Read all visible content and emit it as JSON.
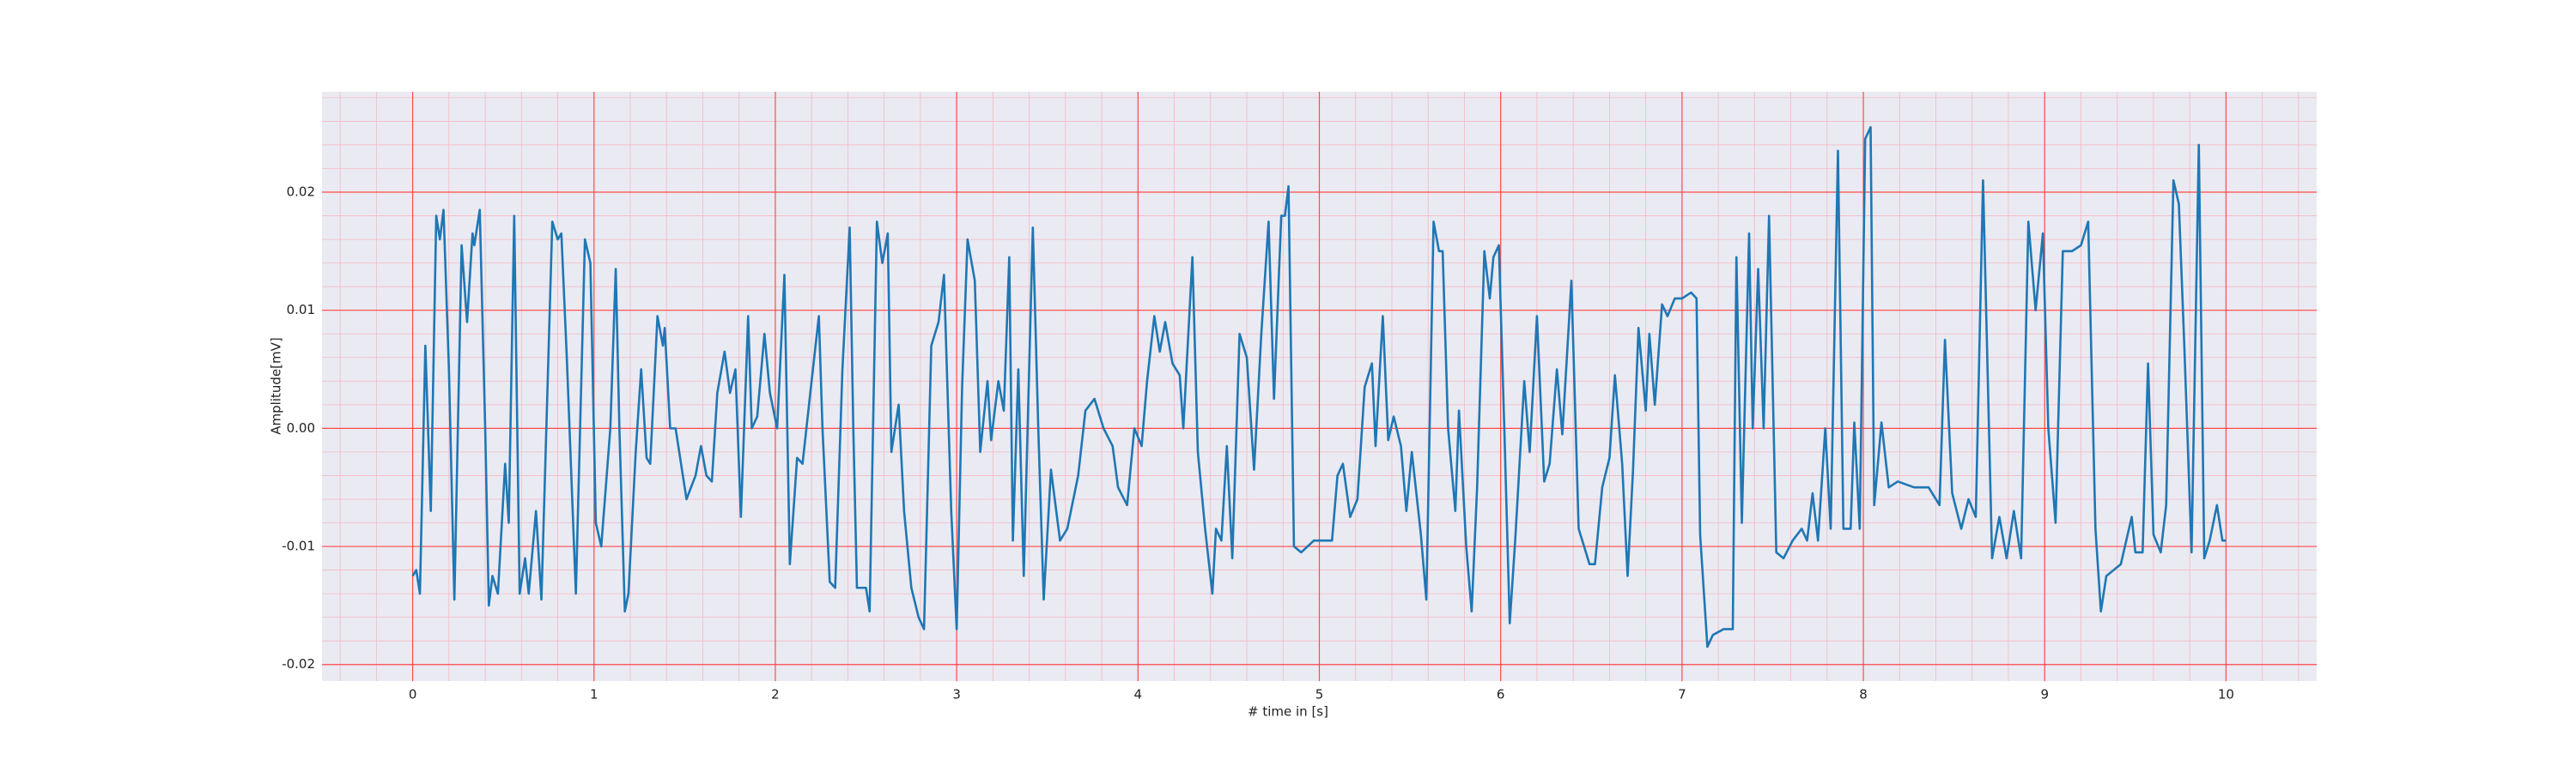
{
  "chart_data": {
    "type": "line",
    "xlabel": "# time in [s]",
    "ylabel": "Amplitude[mV]",
    "xlim": [
      -0.5,
      10.5
    ],
    "ylim": [
      -0.0214,
      0.0285
    ],
    "xticks": [
      0,
      1,
      2,
      3,
      4,
      5,
      6,
      7,
      8,
      9,
      10
    ],
    "yticks": [
      -0.02,
      -0.01,
      {
        "value": 0,
        "label": "0.00"
      },
      0.01,
      0.02
    ],
    "grid": true,
    "minor_grid": true,
    "grid_color": "#ff4a4a",
    "minor_grid_color": "#f4b9c4",
    "background": "#eaeaf2",
    "x": [
      0,
      0.02,
      0.04,
      0.07,
      0.1,
      0.13,
      0.15,
      0.17,
      0.2,
      0.23,
      0.27,
      0.3,
      0.33,
      0.34,
      0.37,
      0.4,
      0.42,
      0.44,
      0.47,
      0.51,
      0.53,
      0.56,
      0.59,
      0.62,
      0.64,
      0.68,
      0.71,
      0.77,
      0.8,
      0.82,
      0.85,
      0.9,
      0.95,
      0.98,
      1.01,
      1.04,
      1.09,
      1.12,
      1.14,
      1.17,
      1.19,
      1.23,
      1.26,
      1.29,
      1.31,
      1.35,
      1.38,
      1.39,
      1.42,
      1.45,
      1.48,
      1.51,
      1.56,
      1.59,
      1.62,
      1.65,
      1.68,
      1.72,
      1.75,
      1.78,
      1.81,
      1.85,
      1.87,
      1.9,
      1.94,
      1.97,
      2.01,
      2.05,
      2.08,
      2.12,
      2.15,
      2.2,
      2.24,
      2.26,
      2.3,
      2.33,
      2.37,
      2.41,
      2.43,
      2.45,
      2.5,
      2.52,
      2.56,
      2.59,
      2.62,
      2.64,
      2.68,
      2.71,
      2.75,
      2.79,
      2.82,
      2.86,
      2.9,
      2.93,
      2.97,
      3.0,
      3.03,
      3.06,
      3.1,
      3.13,
      3.17,
      3.19,
      3.23,
      3.26,
      3.29,
      3.31,
      3.34,
      3.37,
      3.42,
      3.45,
      3.48,
      3.52,
      3.57,
      3.61,
      3.67,
      3.71,
      3.76,
      3.81,
      3.86,
      3.89,
      3.94,
      3.98,
      4.02,
      4.05,
      4.09,
      4.12,
      4.15,
      4.19,
      4.23,
      4.25,
      4.3,
      4.33,
      4.37,
      4.41,
      4.43,
      4.46,
      4.49,
      4.52,
      4.56,
      4.6,
      4.64,
      4.68,
      4.72,
      4.75,
      4.79,
      4.81,
      4.83,
      4.86,
      4.9,
      4.97,
      5.07,
      5.1,
      5.13,
      5.17,
      5.21,
      5.25,
      5.29,
      5.31,
      5.35,
      5.38,
      5.41,
      5.45,
      5.48,
      5.51,
      5.56,
      5.59,
      5.63,
      5.66,
      5.68,
      5.71,
      5.75,
      5.77,
      5.81,
      5.84,
      5.87,
      5.91,
      5.94,
      5.96,
      5.99,
      6.02,
      6.05,
      6.08,
      6.13,
      6.16,
      6.2,
      6.24,
      6.27,
      6.31,
      6.34,
      6.39,
      6.43,
      6.46,
      6.49,
      6.52,
      6.56,
      6.6,
      6.63,
      6.67,
      6.7,
      6.73,
      6.76,
      6.8,
      6.82,
      6.85,
      6.89,
      6.92,
      6.96,
      7.0,
      7.05,
      7.08,
      7.1,
      7.14,
      7.17,
      7.23,
      7.28,
      7.3,
      7.33,
      7.37,
      7.39,
      7.42,
      7.45,
      7.48,
      7.52,
      7.56,
      7.61,
      7.66,
      7.69,
      7.72,
      7.75,
      7.79,
      7.82,
      7.86,
      7.89,
      7.93,
      7.95,
      7.98,
      8.01,
      8.04,
      8.06,
      8.1,
      8.14,
      8.19,
      8.28,
      8.36,
      8.42,
      8.45,
      8.49,
      8.54,
      8.58,
      8.62,
      8.66,
      8.71,
      8.75,
      8.79,
      8.83,
      8.87,
      8.91,
      8.95,
      8.99,
      9.02,
      9.06,
      9.1,
      9.15,
      9.2,
      9.24,
      9.28,
      9.31,
      9.34,
      9.42,
      9.48,
      9.5,
      9.54,
      9.57,
      9.6,
      9.64,
      9.67,
      9.71,
      9.74,
      9.77,
      9.81,
      9.85,
      9.88,
      9.91,
      9.95,
      9.98,
      10.0
    ],
    "series": [
      {
        "color": "#1f77b4",
        "values": [
          -0.0125,
          -0.012,
          -0.014,
          0.007,
          -0.007,
          0.018,
          0.016,
          0.0185,
          0.005,
          -0.0145,
          0.0155,
          0.009,
          0.0165,
          0.0155,
          0.0185,
          0.0,
          -0.015,
          -0.0125,
          -0.014,
          -0.003,
          -0.008,
          0.018,
          -0.014,
          -0.011,
          -0.014,
          -0.007,
          -0.0145,
          0.0175,
          0.016,
          0.0165,
          0.006,
          -0.014,
          0.016,
          0.014,
          -0.008,
          -0.01,
          0.0,
          0.0135,
          0.0,
          -0.0155,
          -0.014,
          -0.002,
          0.005,
          -0.0025,
          -0.003,
          0.0095,
          0.007,
          0.0085,
          0.0,
          0.0,
          -0.003,
          -0.006,
          -0.004,
          -0.0015,
          -0.004,
          -0.0045,
          0.003,
          0.0065,
          0.003,
          0.005,
          -0.0075,
          0.0095,
          0.0,
          0.001,
          0.008,
          0.003,
          0.0,
          0.013,
          -0.0115,
          -0.0025,
          -0.003,
          0.004,
          0.0095,
          0.0,
          -0.013,
          -0.0135,
          0.005,
          0.017,
          0.0,
          -0.0135,
          -0.0135,
          -0.0155,
          0.0175,
          0.014,
          0.0165,
          -0.002,
          0.002,
          -0.007,
          -0.0135,
          -0.016,
          -0.017,
          0.007,
          0.009,
          0.013,
          -0.007,
          -0.017,
          0.0035,
          0.016,
          0.0125,
          -0.002,
          0.004,
          -0.001,
          0.004,
          0.0015,
          0.0145,
          -0.0095,
          0.005,
          -0.0125,
          0.017,
          0.0,
          -0.0145,
          -0.0035,
          -0.0095,
          -0.0085,
          -0.004,
          0.0015,
          0.0025,
          0.0,
          -0.0015,
          -0.005,
          -0.0065,
          0.0,
          -0.0015,
          0.004,
          0.0095,
          0.0065,
          0.009,
          0.0055,
          0.0045,
          0.0,
          0.0145,
          -0.002,
          -0.0085,
          -0.014,
          -0.0085,
          -0.0095,
          -0.0015,
          -0.011,
          0.008,
          0.006,
          -0.0035,
          0.008,
          0.0175,
          0.0025,
          0.018,
          0.018,
          0.0205,
          -0.01,
          -0.0105,
          -0.0095,
          -0.0095,
          -0.004,
          -0.003,
          -0.0075,
          -0.006,
          0.0035,
          0.0055,
          -0.0015,
          0.0095,
          -0.001,
          0.001,
          -0.0015,
          -0.007,
          -0.002,
          -0.009,
          -0.0145,
          0.0175,
          0.015,
          0.015,
          0.0,
          -0.007,
          0.0015,
          -0.01,
          -0.0155,
          -0.005,
          0.015,
          0.011,
          0.0145,
          0.0155,
          0.0,
          -0.0165,
          -0.0095,
          0.004,
          -0.002,
          0.0095,
          -0.0045,
          -0.003,
          0.005,
          -0.0005,
          0.0125,
          -0.0085,
          -0.01,
          -0.0115,
          -0.0115,
          -0.005,
          -0.0025,
          0.0045,
          -0.003,
          -0.0125,
          -0.0035,
          0.0085,
          0.0015,
          0.008,
          0.002,
          0.0105,
          0.0095,
          0.011,
          0.011,
          0.0115,
          0.011,
          -0.009,
          -0.0185,
          -0.0175,
          -0.017,
          -0.017,
          0.0145,
          -0.008,
          0.0165,
          0.0,
          0.0135,
          0.0,
          0.018,
          -0.0105,
          -0.011,
          -0.0095,
          -0.0085,
          -0.0095,
          -0.0055,
          -0.0095,
          0.0,
          -0.0085,
          0.0235,
          -0.0085,
          -0.0085,
          0.0005,
          -0.0085,
          0.0245,
          0.0255,
          -0.0065,
          0.0005,
          -0.005,
          -0.0045,
          -0.005,
          -0.005,
          -0.0065,
          0.0075,
          -0.0055,
          -0.0085,
          -0.006,
          -0.0075,
          0.021,
          -0.011,
          -0.0075,
          -0.011,
          -0.007,
          -0.011,
          0.0175,
          0.01,
          0.0165,
          0.0,
          -0.008,
          0.015,
          0.015,
          0.0155,
          0.0175,
          -0.0085,
          -0.0155,
          -0.0125,
          -0.0115,
          -0.0075,
          -0.0105,
          -0.0105,
          0.0055,
          -0.009,
          -0.0105,
          -0.0065,
          0.021,
          0.019,
          0.007,
          -0.0105,
          0.024,
          -0.011,
          -0.0095,
          -0.0065,
          -0.0095,
          -0.0095
        ]
      }
    ]
  }
}
